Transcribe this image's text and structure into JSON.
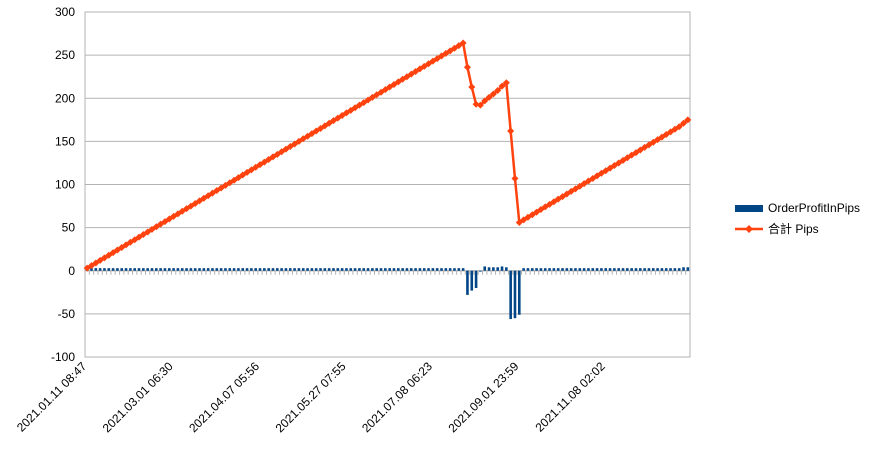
{
  "chart_data": {
    "type": "bar-line",
    "categories": [
      "2021.01.11 08:47",
      null,
      null,
      null,
      null,
      null,
      null,
      null,
      null,
      null,
      null,
      null,
      null,
      null,
      null,
      null,
      null,
      null,
      null,
      null,
      "2021.03.01 06:30",
      null,
      null,
      null,
      null,
      null,
      null,
      null,
      null,
      null,
      null,
      null,
      null,
      null,
      null,
      null,
      null,
      null,
      null,
      null,
      "2021.04.07 05:56",
      null,
      null,
      null,
      null,
      null,
      null,
      null,
      null,
      null,
      null,
      null,
      null,
      null,
      null,
      null,
      null,
      null,
      null,
      null,
      "2021.05.27 07:55",
      null,
      null,
      null,
      null,
      null,
      null,
      null,
      null,
      null,
      null,
      null,
      null,
      null,
      null,
      null,
      null,
      null,
      null,
      null,
      "2021.07.08 06:23",
      null,
      null,
      null,
      null,
      null,
      null,
      null,
      null,
      null,
      null,
      null,
      null,
      null,
      null,
      null,
      null,
      null,
      null,
      null,
      "2021.09.01 23:59",
      null,
      null,
      null,
      null,
      null,
      null,
      null,
      null,
      null,
      null,
      null,
      null,
      null,
      null,
      null,
      null,
      null,
      null,
      null,
      "2021.11.08 02:02",
      null,
      null,
      null,
      null,
      null,
      null,
      null,
      null,
      null,
      null,
      null,
      null,
      null,
      null,
      null,
      null,
      null,
      null,
      null
    ],
    "series": [
      {
        "name": "OrderProfitInPips",
        "color": "#004586",
        "kind": "bar",
        "values": [
          3,
          3,
          3,
          3,
          3,
          3,
          3,
          3,
          3,
          3,
          3,
          3,
          3,
          3,
          3,
          3,
          3,
          3,
          3,
          3,
          3,
          3,
          3,
          3,
          3,
          3,
          3,
          3,
          3,
          3,
          3,
          3,
          3,
          3,
          3,
          3,
          3,
          3,
          3,
          3,
          3,
          3,
          3,
          3,
          3,
          3,
          3,
          3,
          3,
          3,
          3,
          3,
          3,
          3,
          3,
          3,
          3,
          3,
          3,
          3,
          3,
          3,
          3,
          3,
          3,
          3,
          3,
          3,
          3,
          3,
          3,
          3,
          3,
          3,
          3,
          3,
          3,
          3,
          3,
          3,
          3,
          3,
          3,
          3,
          3,
          3,
          3,
          3,
          -28,
          -23,
          -20,
          -1,
          5,
          4,
          4,
          4,
          5,
          4,
          -56,
          -55,
          -51,
          3,
          3,
          3,
          3,
          3,
          3,
          3,
          3,
          3,
          3,
          3,
          3,
          3,
          3,
          3,
          3,
          3,
          3,
          3,
          3,
          3,
          3,
          3,
          3,
          3,
          3,
          3,
          3,
          3,
          3,
          3,
          3,
          3,
          3,
          3,
          3,
          3,
          4,
          4
        ]
      },
      {
        "name": "合計 Pips",
        "color": "#ff420e",
        "kind": "line",
        "values": [
          3,
          6,
          9,
          12,
          15,
          18,
          21,
          24,
          27,
          30,
          33,
          36,
          39,
          42,
          45,
          48,
          51,
          54,
          57,
          60,
          63,
          66,
          69,
          72,
          75,
          78,
          81,
          84,
          87,
          90,
          93,
          96,
          99,
          102,
          105,
          108,
          111,
          114,
          117,
          120,
          123,
          126,
          129,
          132,
          135,
          138,
          141,
          144,
          147,
          150,
          153,
          156,
          159,
          162,
          165,
          168,
          171,
          174,
          177,
          180,
          183,
          186,
          189,
          192,
          195,
          198,
          201,
          204,
          207,
          210,
          213,
          216,
          219,
          222,
          225,
          228,
          231,
          234,
          237,
          240,
          243,
          246,
          249,
          252,
          255,
          258,
          261,
          264,
          236,
          213,
          193,
          192,
          197,
          201,
          205,
          209,
          214,
          218,
          162,
          107,
          56,
          59,
          62,
          65,
          68,
          71,
          74,
          77,
          80,
          83,
          86,
          89,
          92,
          95,
          98,
          101,
          104,
          107,
          110,
          113,
          116,
          119,
          122,
          125,
          128,
          131,
          134,
          137,
          140,
          143,
          146,
          149,
          152,
          155,
          158,
          161,
          164,
          167,
          171,
          175
        ]
      }
    ],
    "ylim": [
      -100,
      300
    ],
    "yticks": [
      -100,
      -50,
      0,
      50,
      100,
      150,
      200,
      250,
      300
    ],
    "grid": true,
    "legend": "right"
  }
}
